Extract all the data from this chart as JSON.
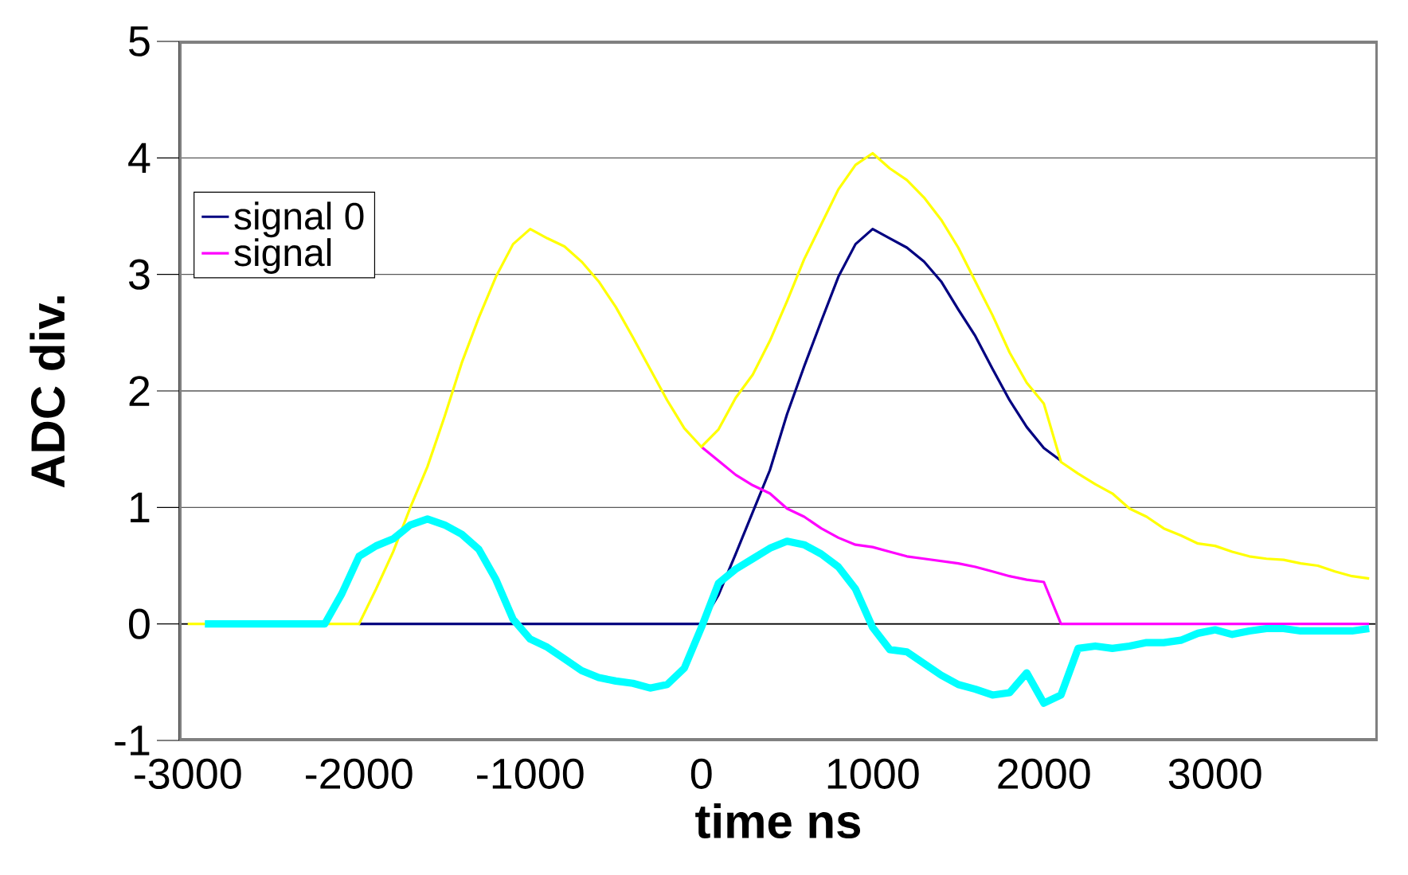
{
  "chart_data": {
    "type": "line",
    "xlabel": "time ns",
    "ylabel": "ADC div.",
    "xlim": [
      -3050,
      3950
    ],
    "ylim": [
      -1,
      5
    ],
    "xticks": [
      -3000,
      -2000,
      -1000,
      0,
      1000,
      2000,
      3000
    ],
    "yticks": [
      -1,
      0,
      1,
      2,
      3,
      4,
      5
    ],
    "grid": "y",
    "legend": "top left",
    "line_style": "solid",
    "marker": "none",
    "x": [
      -3000,
      -2900,
      -2800,
      -2700,
      -2600,
      -2500,
      -2400,
      -2300,
      -2200,
      -2100,
      -2000,
      -1900,
      -1800,
      -1700,
      -1600,
      -1500,
      -1400,
      -1300,
      -1200,
      -1100,
      -1000,
      -900,
      -800,
      -700,
      -600,
      -500,
      -400,
      -300,
      -200,
      -100,
      0,
      100,
      200,
      300,
      400,
      500,
      600,
      700,
      800,
      900,
      1000,
      1100,
      1200,
      1300,
      1400,
      1500,
      1600,
      1700,
      1800,
      1900,
      2000,
      2100,
      2200,
      2300,
      2400,
      2500,
      2600,
      2700,
      2800,
      2900,
      3000,
      3100,
      3200,
      3300,
      3400,
      3500,
      3600,
      3700,
      3800,
      3900
    ],
    "series": [
      {
        "name": "signal 0",
        "color": "#000080",
        "values": [
          null,
          null,
          null,
          null,
          null,
          null,
          null,
          null,
          null,
          null,
          0,
          0,
          0,
          0,
          0,
          0,
          0,
          0,
          0,
          0,
          0,
          0,
          0,
          0,
          0,
          0,
          0,
          0,
          0,
          0,
          0,
          0.25,
          0.6,
          0.96,
          1.32,
          1.8,
          2.21,
          2.6,
          2.98,
          3.26,
          3.39,
          3.31,
          3.23,
          3.11,
          2.94,
          2.7,
          2.47,
          2.19,
          1.92,
          1.69,
          1.51,
          1.4,
          null,
          null,
          null,
          null,
          null,
          null,
          null,
          null,
          null,
          null,
          null,
          null,
          null,
          null,
          null,
          null,
          null,
          null
        ]
      },
      {
        "name": "signal",
        "color": "#ff00ff",
        "values": [
          null,
          null,
          null,
          null,
          null,
          null,
          null,
          null,
          null,
          null,
          null,
          null,
          null,
          null,
          null,
          null,
          null,
          null,
          null,
          null,
          null,
          null,
          null,
          null,
          null,
          null,
          null,
          null,
          null,
          null,
          1.52,
          1.4,
          1.28,
          1.19,
          1.12,
          0.99,
          0.92,
          0.82,
          0.74,
          0.68,
          0.66,
          0.62,
          0.58,
          0.56,
          0.54,
          0.52,
          0.49,
          0.45,
          0.41,
          0.38,
          0.36,
          0,
          0,
          0,
          0,
          0,
          0,
          0,
          0,
          0,
          0,
          0,
          0,
          0,
          0,
          0,
          0,
          0,
          0,
          0
        ]
      },
      {
        "color": "#ffff00",
        "values": [
          0,
          0,
          0,
          0,
          0,
          0,
          0,
          0,
          0,
          0,
          0,
          0.3,
          0.62,
          1.0,
          1.35,
          1.78,
          2.24,
          2.63,
          2.98,
          3.26,
          3.39,
          3.31,
          3.24,
          3.11,
          2.94,
          2.72,
          2.46,
          2.19,
          1.92,
          1.68,
          1.52,
          1.67,
          1.94,
          2.14,
          2.43,
          2.77,
          3.13,
          3.43,
          3.73,
          3.94,
          4.04,
          3.91,
          3.81,
          3.66,
          3.47,
          3.23,
          2.94,
          2.65,
          2.33,
          2.07,
          1.89,
          1.39,
          1.29,
          1.2,
          1.12,
          0.99,
          0.92,
          0.82,
          0.76,
          0.69,
          0.67,
          0.62,
          0.58,
          0.56,
          0.55,
          0.52,
          0.5,
          0.45,
          0.41,
          0.39
        ]
      },
      {
        "color": "#00ffff",
        "values": [
          null,
          0,
          0,
          0,
          0,
          0,
          0,
          0,
          0,
          0.26,
          0.58,
          0.67,
          0.73,
          0.85,
          0.9,
          0.85,
          0.77,
          0.64,
          0.38,
          0.04,
          -0.13,
          -0.2,
          -0.3,
          -0.4,
          -0.46,
          -0.49,
          -0.51,
          -0.55,
          -0.52,
          -0.38,
          -0.03,
          0.35,
          0.47,
          0.56,
          0.65,
          0.71,
          0.68,
          0.6,
          0.49,
          0.3,
          -0.03,
          -0.22,
          -0.24,
          -0.34,
          -0.44,
          -0.52,
          -0.56,
          -0.61,
          -0.59,
          -0.42,
          -0.68,
          -0.61,
          -0.21,
          -0.19,
          -0.21,
          -0.19,
          -0.16,
          -0.16,
          -0.14,
          -0.08,
          -0.05,
          -0.09,
          -0.06,
          -0.04,
          -0.04,
          -0.06,
          -0.06,
          -0.06,
          -0.06,
          -0.04
        ]
      }
    ]
  }
}
